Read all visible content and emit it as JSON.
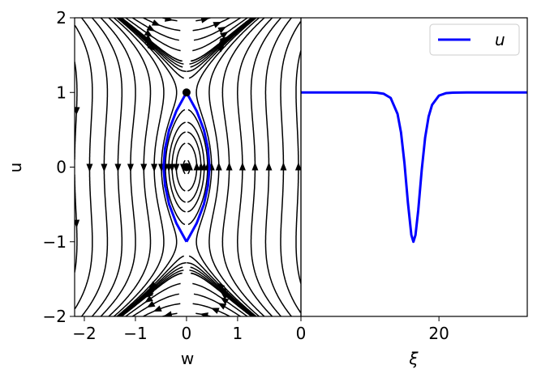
{
  "chart_data": [
    {
      "type": "streamplot",
      "x_label": "w",
      "y_label": "u",
      "xlim": [
        -2.19,
        2.24
      ],
      "ylim": [
        -2,
        2
      ],
      "xticks": [
        {
          "value": -2,
          "label": "−2"
        },
        {
          "value": -1,
          "label": "−1"
        },
        0,
        1
      ],
      "yticks": [
        {
          "value": -2,
          "label": "−2"
        },
        {
          "value": -1,
          "label": "−1"
        },
        0,
        1,
        2
      ],
      "stream_color": "#000000",
      "curve": {
        "color": "#0000ff",
        "x": [
          0,
          0.2,
          0.34,
          0.42,
          0.45,
          0.42,
          0.34,
          0.2,
          0,
          -0.2,
          -0.34,
          -0.42,
          -0.45,
          -0.42,
          -0.34,
          -0.2,
          0
        ],
        "y": [
          -1,
          -0.75,
          -0.5,
          -0.25,
          0,
          0.25,
          0.5,
          0.75,
          1,
          0.75,
          0.5,
          0.25,
          0,
          -0.25,
          -0.5,
          -0.75,
          -1
        ]
      },
      "points": {
        "color": "#000000",
        "x": [
          0,
          0
        ],
        "y": [
          0,
          1
        ]
      }
    },
    {
      "type": "line",
      "x_label": "ξ",
      "xlim": [
        0,
        32.8
      ],
      "ylim": [
        -2,
        2
      ],
      "xticks": [
        0,
        20
      ],
      "legend": "upper right",
      "x": [
        0,
        2,
        4,
        6,
        8,
        10,
        11,
        12,
        13,
        14,
        14.5,
        15,
        15.5,
        16,
        16.3,
        16.6,
        17,
        17.5,
        18,
        18.5,
        19,
        20,
        21,
        22,
        24,
        26,
        28,
        30,
        32.8
      ],
      "series": [
        {
          "name": "u",
          "color": "#0000ff",
          "values": [
            1,
            1,
            1,
            1,
            1,
            1,
            0.996,
            0.982,
            0.927,
            0.713,
            0.465,
            0.055,
            -0.474,
            -0.91,
            -1,
            -0.91,
            -0.579,
            -0.043,
            0.396,
            0.675,
            0.833,
            0.958,
            0.99,
            0.997,
            1,
            1,
            1,
            1,
            1
          ]
        }
      ]
    }
  ]
}
